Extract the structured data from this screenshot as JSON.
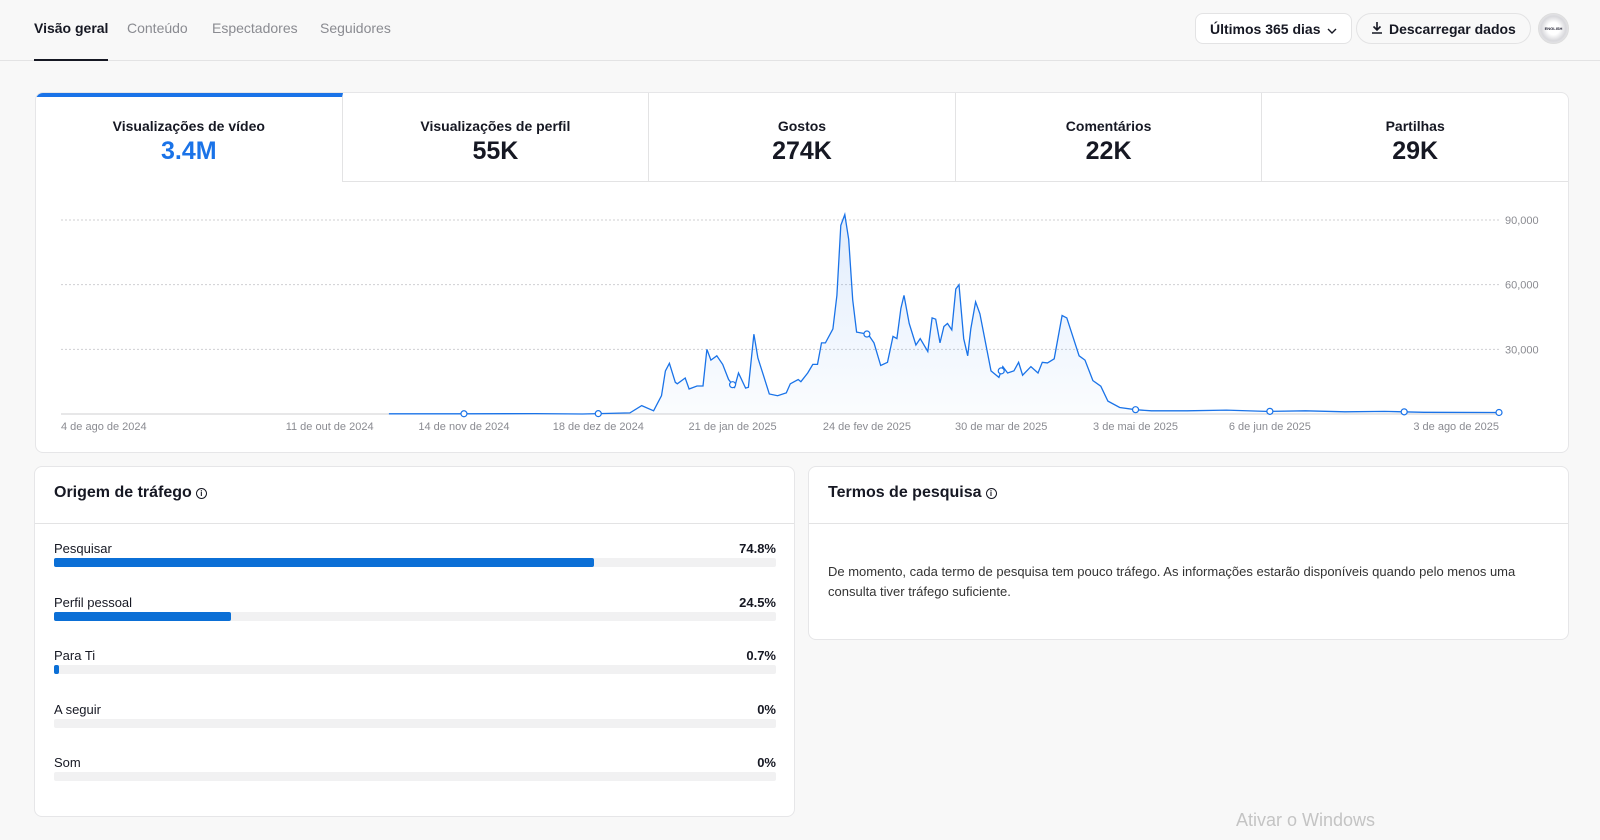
{
  "nav": {
    "tabs": [
      "Visão geral",
      "Conteúdo",
      "Espectadores",
      "Seguidores"
    ],
    "active": 0
  },
  "toolbar": {
    "range_label": "Últimos 365 dias",
    "download_label": "Descarregar dados",
    "avatar_text": "ENGLISH"
  },
  "metrics": [
    {
      "label": "Visualizações de vídeo",
      "value": "3.4M"
    },
    {
      "label": "Visualizações de perfil",
      "value": "55K"
    },
    {
      "label": "Gostos",
      "value": "274K"
    },
    {
      "label": "Comentários",
      "value": "22K"
    },
    {
      "label": "Partilhas",
      "value": "29K"
    }
  ],
  "colors": {
    "accent": "#1a73e8",
    "bar": "#0b6fd6"
  },
  "chart_data": {
    "type": "area",
    "series_name": "Visualizações de vídeo",
    "x_unit": "days since 4 de ago de 2024",
    "xlim": [
      0,
      364
    ],
    "ylim": [
      0,
      90000
    ],
    "yticks": [
      30000,
      60000,
      90000
    ],
    "ytick_labels": [
      "30,000",
      "60,000",
      "90,000"
    ],
    "xticks": [
      0,
      68,
      102,
      136,
      170,
      204,
      238,
      272,
      306,
      364
    ],
    "xtick_labels": [
      "4 de ago de 2024",
      "11 de out de 2024",
      "14 de nov de 2024",
      "18 de dez de 2024",
      "21 de jan de 2025",
      "24 de fev de 2025",
      "30 de mar de 2025",
      "3 de mai de 2025",
      "6 de jun de 2025",
      "3 de ago de 2025"
    ],
    "markers": [
      102,
      136,
      170,
      204,
      238,
      272,
      306,
      340,
      364
    ],
    "points": [
      [
        83,
        100
      ],
      [
        100,
        100
      ],
      [
        120,
        200
      ],
      [
        132,
        0
      ],
      [
        144,
        500
      ],
      [
        147,
        3900
      ],
      [
        150,
        1500
      ],
      [
        152,
        8500
      ],
      [
        153,
        20000
      ],
      [
        154,
        23500
      ],
      [
        155.5,
        14700
      ],
      [
        156,
        14000
      ],
      [
        158,
        16700
      ],
      [
        159,
        11600
      ],
      [
        161,
        13000
      ],
      [
        162.5,
        13000
      ],
      [
        163.5,
        30000
      ],
      [
        164.5,
        25000
      ],
      [
        166,
        27000
      ],
      [
        167.5,
        23000
      ],
      [
        169,
        16000
      ],
      [
        170.5,
        12400
      ],
      [
        171.5,
        19000
      ],
      [
        173.3,
        12000
      ],
      [
        174,
        12400
      ],
      [
        175.4,
        37000
      ],
      [
        176.4,
        26000
      ],
      [
        177.8,
        18000
      ],
      [
        179.3,
        9300
      ],
      [
        181.4,
        8500
      ],
      [
        183.6,
        9800
      ],
      [
        184.6,
        14000
      ],
      [
        186.6,
        16000
      ],
      [
        187.3,
        15000
      ],
      [
        189,
        19000
      ],
      [
        190.3,
        23000
      ],
      [
        191.5,
        23000
      ],
      [
        192.5,
        33000
      ],
      [
        193.5,
        33000
      ],
      [
        195.4,
        39500
      ],
      [
        196.4,
        55000
      ],
      [
        197.4,
        87500
      ],
      [
        198.4,
        92500
      ],
      [
        199.4,
        81000
      ],
      [
        200.4,
        53000
      ],
      [
        201.4,
        38000
      ],
      [
        204.3,
        37000
      ],
      [
        205.8,
        33000
      ],
      [
        207.5,
        22500
      ],
      [
        209.2,
        24000
      ],
      [
        210.6,
        36000
      ],
      [
        211.6,
        35000
      ],
      [
        212.6,
        49000
      ],
      [
        213.4,
        55000
      ],
      [
        214.7,
        42000
      ],
      [
        216.4,
        32000
      ],
      [
        217.5,
        35000
      ],
      [
        219.4,
        29000
      ],
      [
        220.5,
        44600
      ],
      [
        221.4,
        44000
      ],
      [
        222.5,
        33000
      ],
      [
        223.5,
        40600
      ],
      [
        224.4,
        42000
      ],
      [
        225.5,
        39000
      ],
      [
        226.5,
        58000
      ],
      [
        227.3,
        60000
      ],
      [
        228.5,
        35000
      ],
      [
        229.5,
        27000
      ],
      [
        230.3,
        39500
      ],
      [
        231.5,
        52000
      ],
      [
        232.6,
        46500
      ],
      [
        235.4,
        20000
      ],
      [
        237.4,
        17000
      ],
      [
        238.4,
        22000
      ],
      [
        239.6,
        19000
      ],
      [
        241.2,
        20000
      ],
      [
        242.4,
        24000
      ],
      [
        243.4,
        18000
      ],
      [
        245.5,
        22000
      ],
      [
        247.3,
        19000
      ],
      [
        248.4,
        24000
      ],
      [
        249.7,
        23700
      ],
      [
        251.4,
        25600
      ],
      [
        253.4,
        45700
      ],
      [
        254.6,
        44600
      ],
      [
        256.3,
        35000
      ],
      [
        257.7,
        27000
      ],
      [
        259.2,
        25000
      ],
      [
        261.2,
        15500
      ],
      [
        263.2,
        12900
      ],
      [
        265,
        6000
      ],
      [
        268,
        3000
      ],
      [
        272,
        2000
      ],
      [
        276,
        1500
      ],
      [
        285,
        1500
      ],
      [
        295,
        1800
      ],
      [
        305,
        1200
      ],
      [
        315,
        1500
      ],
      [
        325,
        1000
      ],
      [
        335,
        1200
      ],
      [
        345,
        800
      ],
      [
        364,
        700
      ]
    ]
  },
  "traffic": {
    "title": "Origem de tráfego",
    "rows": [
      {
        "label": "Pesquisar",
        "value": "74.8%",
        "pct": 74.8
      },
      {
        "label": "Perfil pessoal",
        "value": "24.5%",
        "pct": 24.5
      },
      {
        "label": "Para Ti",
        "value": "0.7%",
        "pct": 0.7
      },
      {
        "label": "A seguir",
        "value": "0%",
        "pct": 0
      },
      {
        "label": "Som",
        "value": "0%",
        "pct": 0
      }
    ]
  },
  "search_terms": {
    "title": "Termos de pesquisa",
    "message": "De momento, cada termo de pesquisa tem pouco tráfego. As informações estarão disponíveis quando pelo menos uma consulta tiver tráfego suficiente."
  },
  "watermark": "Ativar o Windows"
}
